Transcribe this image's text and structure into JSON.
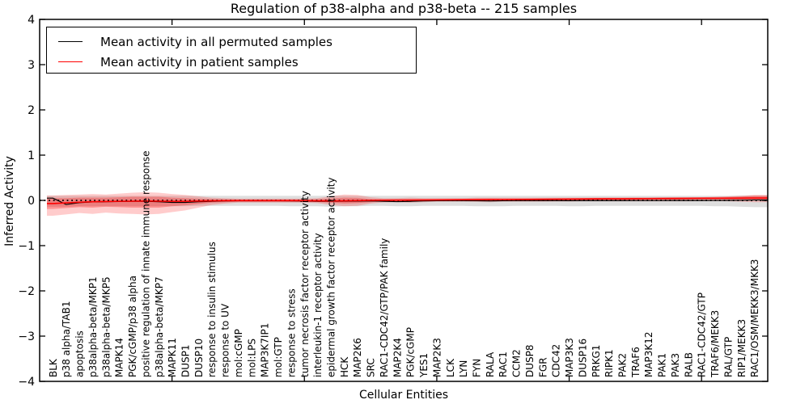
{
  "chart_data": {
    "type": "line",
    "title": "Regulation of p38-alpha and p38-beta -- 215 samples",
    "xlabel": "Cellular Entities",
    "ylabel": "Inferred Activity",
    "xlim": [
      0,
      55
    ],
    "ylim": [
      -4,
      4
    ],
    "yticks": [
      4,
      3,
      2,
      1,
      0,
      -1,
      -2,
      -3,
      -4
    ],
    "xticks_major": [
      10,
      20,
      30,
      40,
      50
    ],
    "grid": false,
    "legend_position": "upper-left",
    "zero_line": {
      "y": 0,
      "style": "dotted",
      "color": "#000000"
    },
    "legend": [
      {
        "label": "Mean activity in all permuted samples",
        "color": "#000000"
      },
      {
        "label": "Mean activity in patient samples",
        "color": "#ff0000"
      }
    ],
    "categories": [
      "BLK",
      "p38 alpha/TAB1",
      "apoptosis",
      "p38alpha-beta/MKP1",
      "p38alpha-beta/MKP5",
      "MAPK14",
      "PGK/cGMP/p38 alpha",
      "positive regulation of innate immune response",
      "p38alpha-beta/MKP7",
      "MAPK11",
      "DUSP1",
      "DUSP10",
      "response to insulin stimulus",
      "response to UV",
      "mol:cGMP",
      "mol:LPS",
      "MAP3K7IP1",
      "mol:GTP",
      "response to stress",
      "tumor necrosis factor receptor activity",
      "interleukin-1 receptor activity",
      "epidermal growth factor receptor activity",
      "HCK",
      "MAP2K6",
      "SRC",
      "RAC1-CDC42/GTP/PAK family",
      "MAP2K4",
      "PGK/cGMP",
      "YES1",
      "MAP2K3",
      "LCK",
      "LYN",
      "FYN",
      "RALA",
      "RAC1",
      "CCM2",
      "DUSP8",
      "FGR",
      "CDC42",
      "MAP3K3",
      "DUSP16",
      "PRKG1",
      "RIPK1",
      "PAK2",
      "TRAF6",
      "MAP3K12",
      "PAK1",
      "PAK3",
      "RALB",
      "RAC1-CDC42/GTP",
      "TRAF6/MEKK3",
      "RAL/GTP",
      "RIP1/MEKK3",
      "RAC1/OSM/MEKK3/MKK3"
    ],
    "series": [
      {
        "name": "Mean activity in all permuted samples",
        "color": "#000000",
        "values": [
          0.05,
          -0.09,
          -0.05,
          -0.035,
          -0.03,
          -0.025,
          -0.02,
          -0.02,
          -0.03,
          -0.045,
          -0.045,
          -0.03,
          -0.02,
          -0.012,
          -0.01,
          -0.01,
          -0.01,
          -0.01,
          -0.012,
          -0.015,
          -0.02,
          -0.02,
          -0.018,
          -0.015,
          -0.012,
          -0.02,
          -0.028,
          -0.022,
          -0.012,
          -0.008,
          -0.005,
          -0.005,
          -0.008,
          -0.012,
          -0.008,
          -0.005,
          -0.005,
          -0.005,
          -0.005,
          -0.006,
          -0.005,
          -0.004,
          -0.004,
          -0.004,
          -0.003,
          -0.003,
          -0.003,
          -0.002,
          -0.002,
          -0.002,
          -0.001,
          0.0,
          0.003,
          0.01
        ]
      },
      {
        "name": "Mean activity in patient samples",
        "color": "#ff0000",
        "values": [
          -0.07,
          -0.055,
          -0.04,
          -0.03,
          -0.025,
          -0.02,
          -0.018,
          -0.015,
          -0.018,
          -0.02,
          -0.02,
          -0.015,
          -0.01,
          -0.006,
          -0.005,
          -0.005,
          -0.005,
          -0.005,
          -0.006,
          -0.008,
          -0.01,
          -0.012,
          -0.01,
          -0.005,
          0.0,
          0.003,
          0.005,
          0.006,
          0.008,
          0.01,
          0.012,
          0.014,
          0.015,
          0.016,
          0.018,
          0.02,
          0.022,
          0.024,
          0.026,
          0.028,
          0.03,
          0.032,
          0.034,
          0.035,
          0.036,
          0.038,
          0.04,
          0.042,
          0.044,
          0.045,
          0.046,
          0.048,
          0.05,
          0.052
        ]
      }
    ],
    "bands": [
      {
        "name": "permuted-samples-range",
        "color": "#000000",
        "opacity": 0.13,
        "lower": [
          -0.14,
          -0.14,
          -0.13,
          -0.13,
          -0.13,
          -0.13,
          -0.13,
          -0.13,
          -0.13,
          -0.13,
          -0.13,
          -0.12,
          -0.12,
          -0.12,
          -0.12,
          -0.12,
          -0.12,
          -0.12,
          -0.13,
          -0.13,
          -0.13,
          -0.14,
          -0.13,
          -0.13,
          -0.12,
          -0.12,
          -0.13,
          -0.13,
          -0.12,
          -0.12,
          -0.12,
          -0.12,
          -0.13,
          -0.13,
          -0.13,
          -0.12,
          -0.12,
          -0.12,
          -0.12,
          -0.13,
          -0.13,
          -0.12,
          -0.12,
          -0.12,
          -0.12,
          -0.12,
          -0.12,
          -0.12,
          -0.12,
          -0.12,
          -0.13,
          -0.13,
          -0.14,
          -0.15
        ],
        "upper": [
          0.1,
          0.1,
          0.1,
          0.1,
          0.1,
          0.1,
          0.1,
          0.1,
          0.1,
          0.1,
          0.1,
          0.1,
          0.1,
          0.1,
          0.1,
          0.1,
          0.1,
          0.1,
          0.1,
          0.1,
          0.1,
          0.11,
          0.1,
          0.1,
          0.1,
          0.1,
          0.1,
          0.1,
          0.1,
          0.1,
          0.1,
          0.1,
          0.1,
          0.1,
          0.1,
          0.1,
          0.1,
          0.1,
          0.1,
          0.1,
          0.1,
          0.1,
          0.1,
          0.1,
          0.1,
          0.1,
          0.1,
          0.1,
          0.1,
          0.1,
          0.1,
          0.1,
          0.11,
          0.11
        ]
      },
      {
        "name": "patient-samples-range-outer",
        "color": "#ff0000",
        "opacity": 0.2,
        "lower": [
          -0.34,
          -0.31,
          -0.28,
          -0.3,
          -0.27,
          -0.29,
          -0.3,
          -0.31,
          -0.3,
          -0.26,
          -0.22,
          -0.16,
          -0.1,
          -0.07,
          -0.05,
          -0.05,
          -0.05,
          -0.05,
          -0.05,
          -0.05,
          -0.06,
          -0.1,
          -0.13,
          -0.12,
          -0.07,
          -0.045,
          -0.04,
          -0.05,
          -0.04,
          -0.03,
          -0.03,
          -0.03,
          -0.035,
          -0.04,
          -0.03,
          -0.03,
          -0.03,
          -0.03,
          -0.025,
          -0.025,
          -0.02,
          -0.02,
          -0.02,
          -0.02,
          -0.02,
          -0.02,
          -0.02,
          -0.02,
          -0.02,
          -0.015,
          -0.015,
          -0.02,
          -0.03,
          -0.04
        ],
        "upper": [
          0.11,
          0.12,
          0.13,
          0.14,
          0.13,
          0.15,
          0.17,
          0.18,
          0.17,
          0.14,
          0.12,
          0.09,
          0.06,
          0.05,
          0.04,
          0.04,
          0.04,
          0.04,
          0.04,
          0.04,
          0.05,
          0.09,
          0.13,
          0.12,
          0.07,
          0.05,
          0.05,
          0.06,
          0.05,
          0.05,
          0.05,
          0.05,
          0.06,
          0.06,
          0.06,
          0.06,
          0.06,
          0.06,
          0.06,
          0.06,
          0.06,
          0.06,
          0.06,
          0.06,
          0.06,
          0.06,
          0.07,
          0.07,
          0.07,
          0.07,
          0.08,
          0.09,
          0.1,
          0.12
        ]
      },
      {
        "name": "patient-samples-range-inner",
        "color": "#ff0000",
        "opacity": 0.28,
        "lower": [
          -0.19,
          -0.17,
          -0.15,
          -0.16,
          -0.14,
          -0.15,
          -0.16,
          -0.16,
          -0.16,
          -0.13,
          -0.11,
          -0.08,
          -0.05,
          -0.04,
          -0.03,
          -0.03,
          -0.03,
          -0.03,
          -0.03,
          -0.03,
          -0.035,
          -0.05,
          -0.07,
          -0.06,
          -0.04,
          -0.02,
          -0.015,
          -0.02,
          -0.015,
          -0.01,
          -0.008,
          -0.006,
          -0.01,
          -0.012,
          -0.008,
          -0.005,
          -0.003,
          0.0,
          0.0,
          0.002,
          0.005,
          0.007,
          0.009,
          0.01,
          0.012,
          0.014,
          0.016,
          0.018,
          0.02,
          0.022,
          0.022,
          0.02,
          0.01,
          0.0
        ],
        "upper": [
          0.05,
          0.05,
          0.06,
          0.06,
          0.06,
          0.07,
          0.08,
          0.08,
          0.08,
          0.06,
          0.05,
          0.04,
          0.03,
          0.02,
          0.02,
          0.02,
          0.02,
          0.02,
          0.02,
          0.02,
          0.025,
          0.04,
          0.06,
          0.055,
          0.03,
          0.025,
          0.025,
          0.03,
          0.03,
          0.03,
          0.032,
          0.034,
          0.04,
          0.042,
          0.04,
          0.04,
          0.042,
          0.044,
          0.047,
          0.05,
          0.052,
          0.055,
          0.057,
          0.058,
          0.06,
          0.062,
          0.064,
          0.066,
          0.068,
          0.07,
          0.072,
          0.076,
          0.085,
          0.1
        ]
      }
    ]
  }
}
